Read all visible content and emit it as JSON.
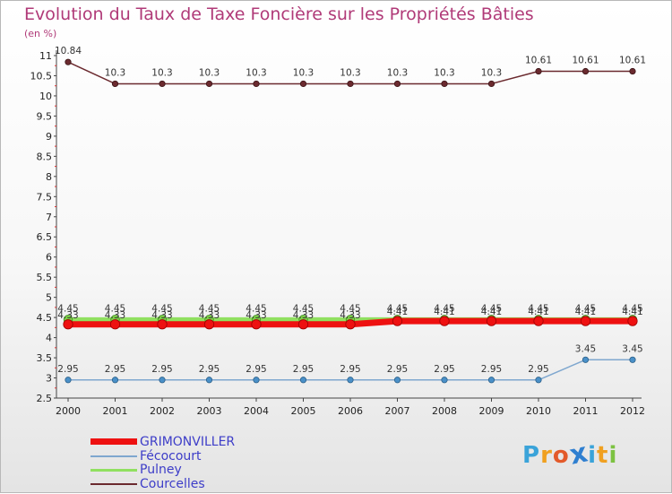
{
  "title": "Evolution du Taux de Taxe Foncière sur les Propriétés Bâties",
  "subtitle": "(en %)",
  "logo": {
    "text": [
      "P",
      "r",
      "o",
      "x",
      "i",
      "t",
      "i"
    ],
    "colors": [
      "#3aa3d9",
      "#f0a020",
      "#e35a2a",
      "#2f7fd0",
      "#3aa3d9",
      "#f0a020",
      "#7cc241"
    ]
  },
  "chart_data": {
    "type": "line",
    "title": "Evolution du Taux de Taxe Foncière sur les Propriétés Bâties",
    "ylabel": "(en %)",
    "xlabel": "",
    "ylim": [
      2.5,
      11.0
    ],
    "y_ticks": [
      "2.5",
      "3",
      "3.5",
      "4",
      "4.5",
      "5",
      "5.5",
      "6",
      "6.5",
      "7",
      "7.5",
      "8",
      "8.5",
      "9",
      "9.5",
      "10",
      "10.5",
      "11"
    ],
    "categories": [
      "2000",
      "2001",
      "2002",
      "2003",
      "2004",
      "2005",
      "2006",
      "2007",
      "2008",
      "2009",
      "2010",
      "2011",
      "2012"
    ],
    "series": [
      {
        "name": "Courcelles",
        "color": "#6b2a2f",
        "values": [
          10.84,
          10.3,
          10.3,
          10.3,
          10.3,
          10.3,
          10.3,
          10.3,
          10.3,
          10.3,
          10.61,
          10.61,
          10.61
        ],
        "labels": [
          "10.84",
          "10.3",
          "10.3",
          "10.3",
          "10.3",
          "10.3",
          "10.3",
          "10.3",
          "10.3",
          "10.3",
          "10.61",
          "10.61",
          "10.61"
        ]
      },
      {
        "name": "Pulney",
        "color": "#90e060",
        "values": [
          4.45,
          4.45,
          4.45,
          4.45,
          4.45,
          4.45,
          4.45,
          4.45,
          4.45,
          4.45,
          4.45,
          4.45,
          4.45
        ],
        "labels": [
          "4.45",
          "4.45",
          "4.45",
          "4.45",
          "4.45",
          "4.45",
          "4.45",
          "4.45",
          "4.45",
          "4.45",
          "4.45",
          "4.45",
          "4.45"
        ]
      },
      {
        "name": "Fécocourt",
        "color": "#7fa7cf",
        "values": [
          2.95,
          2.95,
          2.95,
          2.95,
          2.95,
          2.95,
          2.95,
          2.95,
          2.95,
          2.95,
          2.95,
          3.45,
          3.45
        ],
        "labels": [
          "2.95",
          "2.95",
          "2.95",
          "2.95",
          "2.95",
          "2.95",
          "2.95",
          "2.95",
          "2.95",
          "2.95",
          "2.95",
          "3.45",
          "3.45"
        ]
      },
      {
        "name": "GRIMONVILLER",
        "color": "#ee1111",
        "values": [
          4.33,
          4.33,
          4.33,
          4.33,
          4.33,
          4.33,
          4.33,
          4.41,
          4.41,
          4.41,
          4.41,
          4.41,
          4.41
        ],
        "labels": [
          "4.33",
          "4.33",
          "4.33",
          "4.33",
          "4.33",
          "4.33",
          "4.33",
          "4.41",
          "4.41",
          "4.41",
          "4.41",
          "4.41",
          "4.41"
        ]
      }
    ],
    "legend": {
      "placement": "bottom-left",
      "entries": [
        "GRIMONVILLER",
        "Fécocourt",
        "Pulney",
        "Courcelles"
      ]
    },
    "grid": false
  }
}
